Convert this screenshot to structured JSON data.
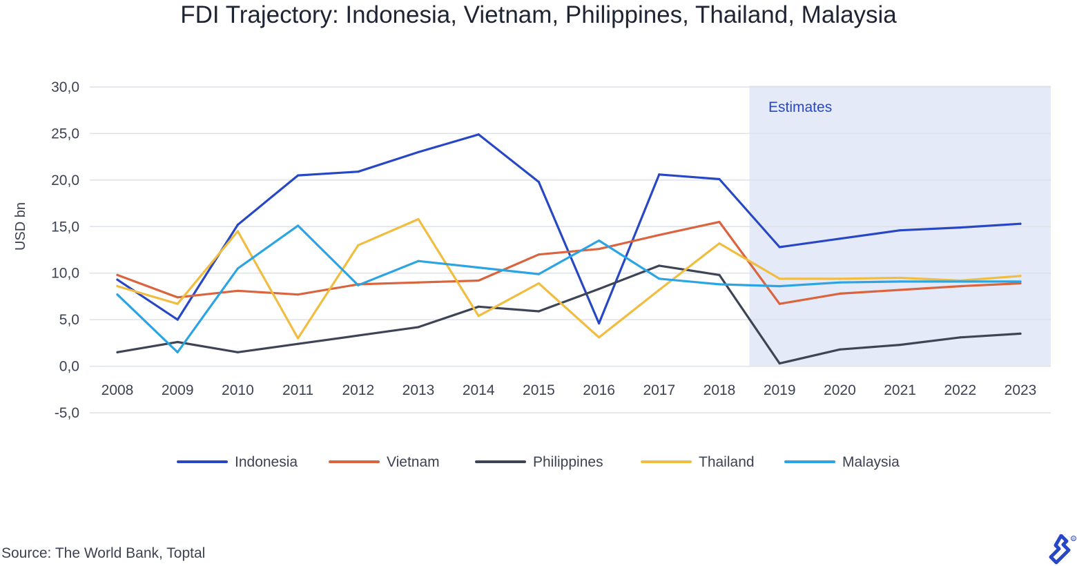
{
  "chart_data": {
    "type": "line",
    "title": "FDI Trajectory: Indonesia, Vietnam, Philippines, Thailand, Malaysia",
    "ylabel": "USD bn",
    "xlabel": "",
    "ylim": [
      -5,
      30
    ],
    "yticks": [
      -5,
      0,
      5,
      10,
      15,
      20,
      25,
      30
    ],
    "ytick_labels": [
      "-5,0",
      "0,0",
      "5,0",
      "10,0",
      "15,0",
      "20,0",
      "25,0",
      "30,0"
    ],
    "categories": [
      "2008",
      "2009",
      "2010",
      "2011",
      "2012",
      "2013",
      "2014",
      "2015",
      "2016",
      "2017",
      "2018",
      "2019",
      "2020",
      "2021",
      "2022",
      "2023"
    ],
    "grid": true,
    "legend_position": "bottom",
    "annotation": {
      "label": "Estimates",
      "from": "2019",
      "to": "2023"
    },
    "series": [
      {
        "name": "Indonesia",
        "color": "#2747c4",
        "values": [
          9.3,
          5.0,
          15.2,
          20.5,
          20.9,
          23.0,
          24.9,
          19.8,
          4.6,
          20.6,
          20.1,
          12.8,
          13.7,
          14.6,
          14.9,
          15.3
        ]
      },
      {
        "name": "Vietnam",
        "color": "#d9643d",
        "values": [
          9.8,
          7.4,
          8.1,
          7.7,
          8.8,
          9.0,
          9.2,
          12.0,
          12.6,
          14.1,
          15.5,
          6.7,
          7.8,
          8.2,
          8.6,
          8.9
        ]
      },
      {
        "name": "Philippines",
        "color": "#3d4455",
        "values": [
          1.5,
          2.6,
          1.5,
          2.4,
          3.3,
          4.2,
          6.4,
          5.9,
          8.3,
          10.8,
          9.8,
          0.3,
          1.8,
          2.3,
          3.1,
          3.5
        ]
      },
      {
        "name": "Thailand",
        "color": "#f0bd40",
        "values": [
          8.6,
          6.7,
          14.5,
          3.0,
          13.0,
          15.8,
          5.4,
          8.9,
          3.1,
          8.2,
          13.2,
          9.4,
          9.4,
          9.5,
          9.2,
          9.7
        ]
      },
      {
        "name": "Malaysia",
        "color": "#2aa4e2",
        "values": [
          7.7,
          1.5,
          10.5,
          15.1,
          8.7,
          11.3,
          10.6,
          9.9,
          13.5,
          9.4,
          8.8,
          8.6,
          9.0,
          9.1,
          9.1,
          9.1
        ]
      }
    ]
  },
  "footer": {
    "source": "Source: The World Bank, Toptal"
  }
}
